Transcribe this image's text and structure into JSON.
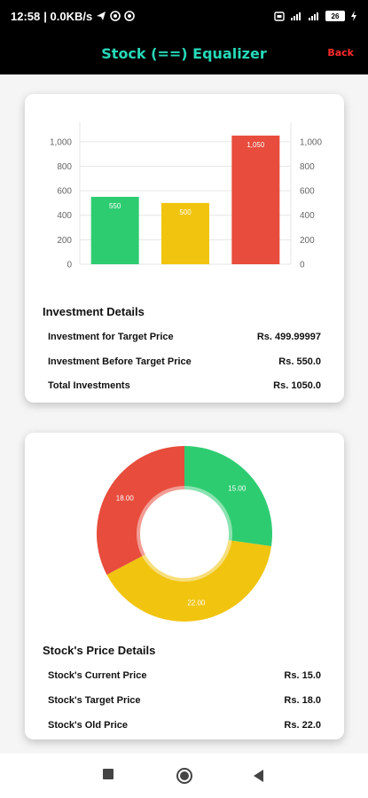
{
  "status_bar": {
    "time": "12:58",
    "network_speed": "| 0.0KB/s",
    "battery_level": "26"
  },
  "app_bar": {
    "title": "Stock (==) Equalizer",
    "back_label": "Back"
  },
  "investment_card": {
    "chart_data": {
      "type": "bar",
      "categories": [
        "Investment Before Target Price",
        "Investment for Target Price",
        "Total Investments"
      ],
      "values": [
        550,
        500,
        1050
      ],
      "value_labels": [
        "550",
        "500",
        "1,050"
      ],
      "colors": [
        "#2ecc71",
        "#f1c40f",
        "#e74c3c"
      ],
      "ylim": [
        0,
        1100
      ],
      "ticks": [
        0,
        200,
        400,
        600,
        800,
        1000
      ],
      "tick_labels": [
        "0",
        "200",
        "400",
        "600",
        "800",
        "1,000"
      ],
      "grid": true,
      "dual_axis_labels": true
    },
    "title": "Investment Details",
    "rows": [
      {
        "label": "Investment for Target Price",
        "value": "Rs. 499.99997"
      },
      {
        "label": "Investment Before Target Price",
        "value": "Rs. 550.0"
      },
      {
        "label": "Total Investments",
        "value": "Rs. 1050.0"
      }
    ]
  },
  "price_card": {
    "chart_data": {
      "type": "pie",
      "donut": true,
      "labels": [
        "Stock's Current Price",
        "Stock's Old Price",
        "Stock's Target Price"
      ],
      "values": [
        15.0,
        22.0,
        18.0
      ],
      "value_labels": [
        "15.00",
        "22.00",
        "18.00"
      ],
      "colors": [
        "#2ecc71",
        "#f1c40f",
        "#e74c3c"
      ]
    },
    "title": "Stock's Price Details",
    "rows": [
      {
        "label": "Stock's Current Price",
        "value": "Rs. 15.0"
      },
      {
        "label": "Stock's Target Price",
        "value": "Rs. 18.0"
      },
      {
        "label": "Stock's Old Price",
        "value": "Rs. 22.0"
      }
    ]
  },
  "nav_bar": {
    "icons": [
      "recents-icon",
      "home-icon",
      "back-icon"
    ]
  }
}
